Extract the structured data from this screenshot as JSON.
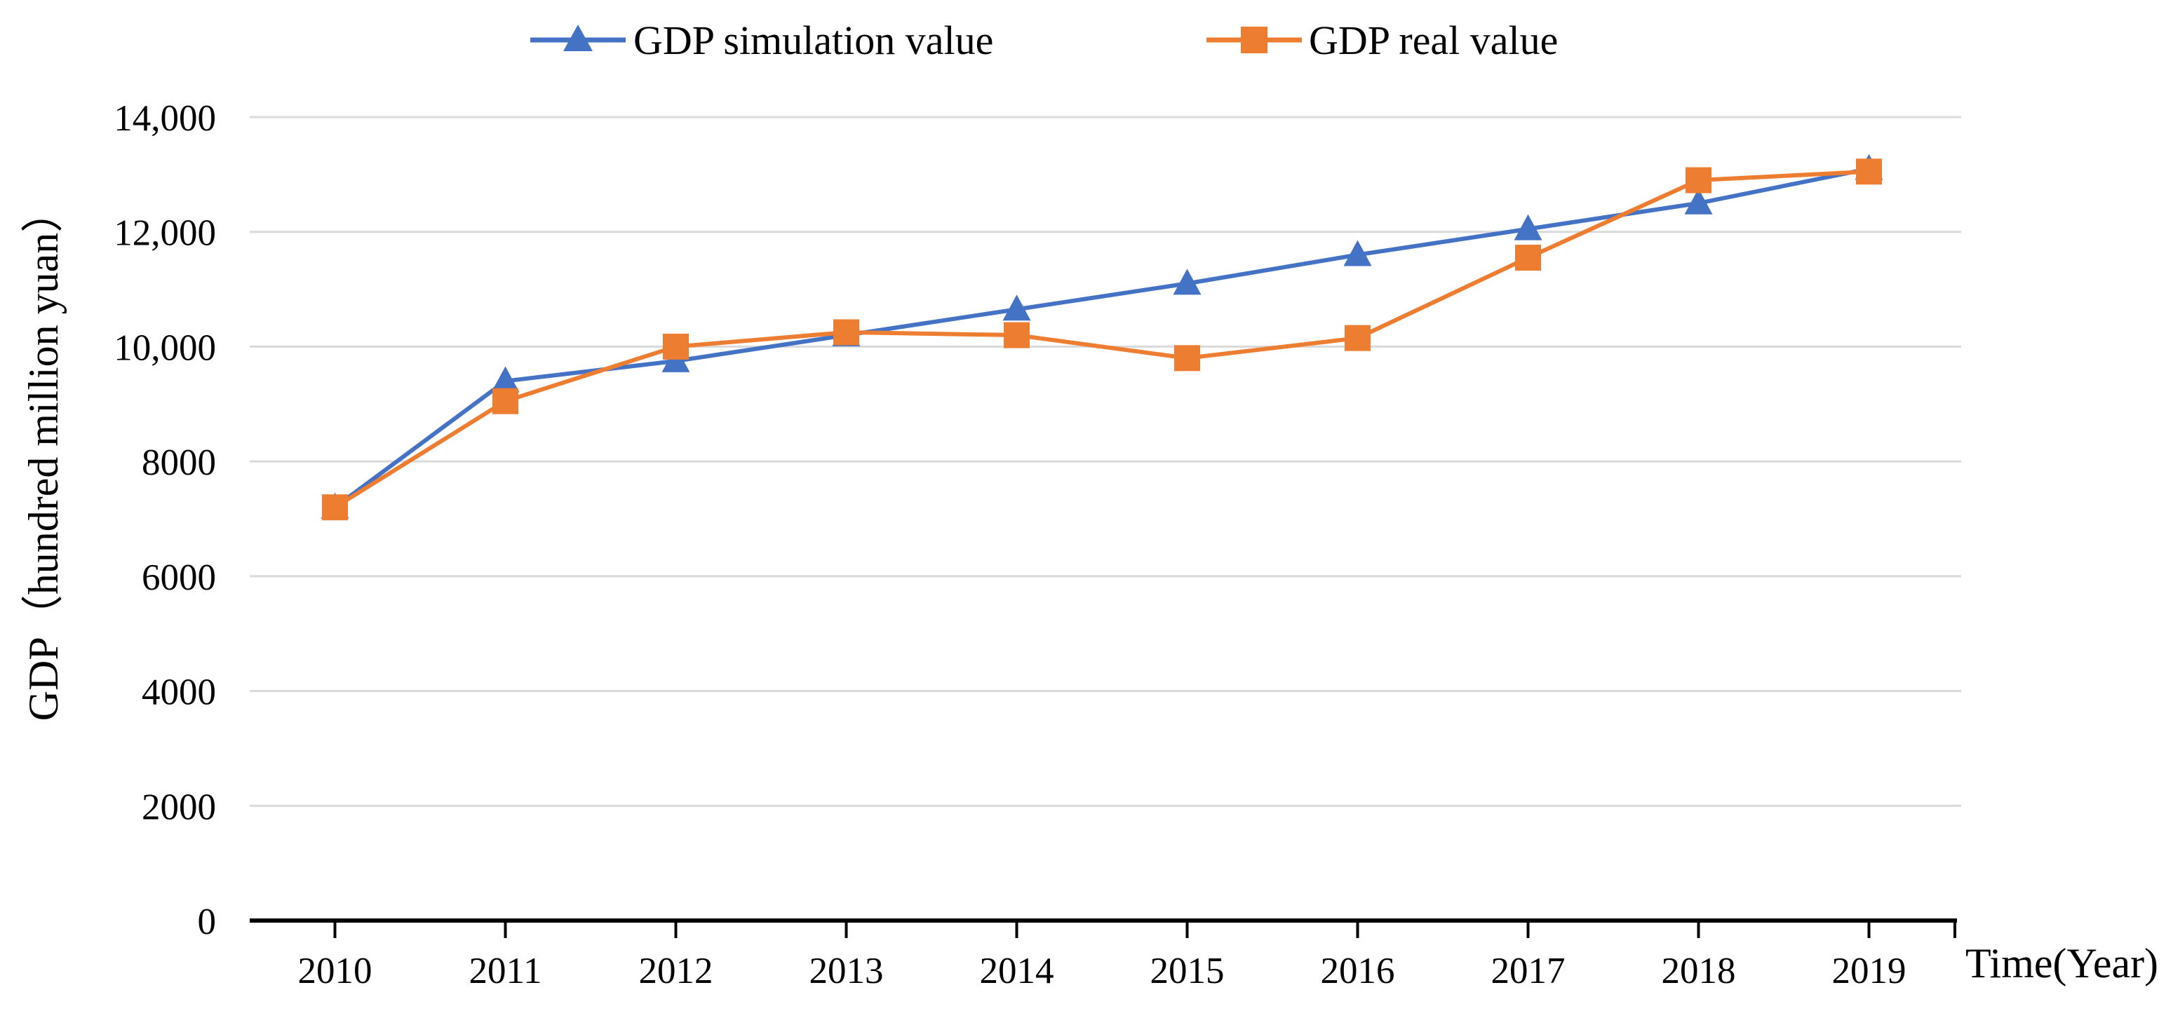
{
  "chart_data": {
    "type": "line",
    "title": "",
    "xlabel": "Time(Year)",
    "ylabel": "GDP（hundred million yuan）",
    "categories": [
      "2010",
      "2011",
      "2012",
      "2013",
      "2014",
      "2015",
      "2016",
      "2017",
      "2018",
      "2019"
    ],
    "series": [
      {
        "name": "GDP simulation value",
        "color": "#4472C4",
        "marker": "triangle",
        "values": [
          7200,
          9400,
          9750,
          10200,
          10650,
          11100,
          11600,
          12050,
          12500,
          13100
        ]
      },
      {
        "name": "GDP real value",
        "color": "#ED7D31",
        "marker": "square",
        "values": [
          7200,
          9050,
          10000,
          10250,
          10200,
          9800,
          10150,
          11550,
          12900,
          13050
        ]
      }
    ],
    "ylim": [
      0,
      14000
    ],
    "yticks": [
      0,
      2000,
      4000,
      6000,
      8000,
      10000,
      12000,
      14000
    ],
    "ytick_labels": [
      "0",
      "2000",
      "4000",
      "6000",
      "8000",
      "10,000",
      "12,000",
      "14,000"
    ],
    "grid": "horizontal",
    "legend_position": "top",
    "colors": {
      "gridline": "#D9D9D9",
      "axis": "#000000",
      "text": "#000000",
      "background": "#FFFFFF"
    }
  }
}
